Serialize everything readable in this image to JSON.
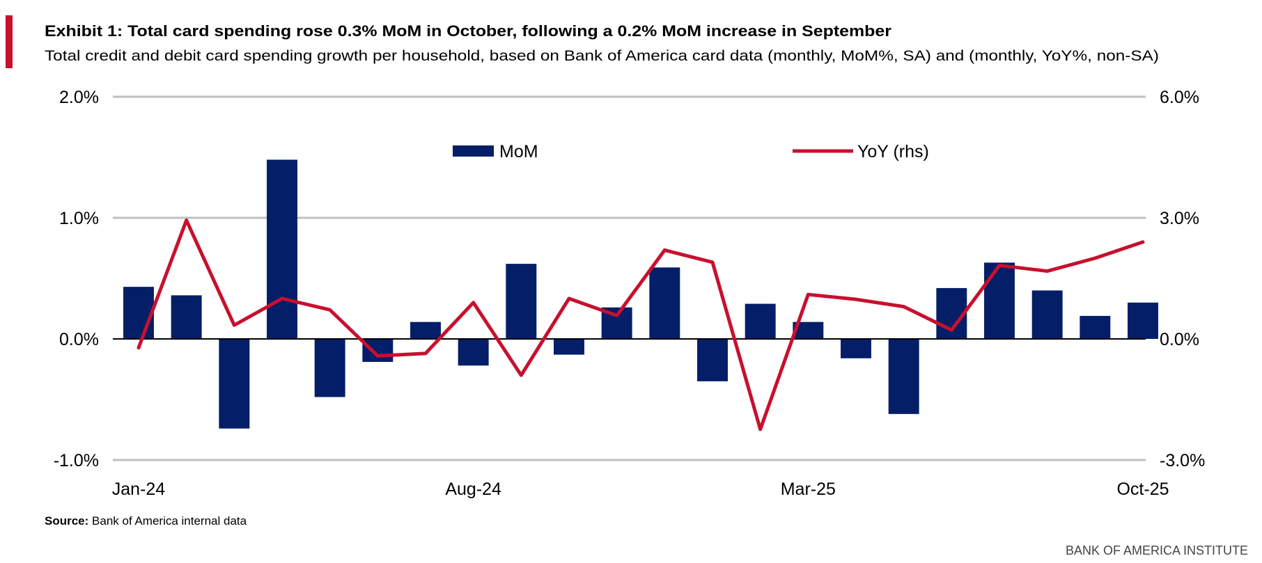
{
  "header": {
    "title": "Exhibit 1: Total card spending rose 0.3% MoM in October, following a 0.2% MoM increase in September",
    "subtitle": "Total credit and debit card spending growth per household, based on Bank of America card data (monthly, MoM%, SA) and (monthly, YoY%, non-SA)"
  },
  "footer": {
    "source_label": "Source:",
    "source_text": " Bank of America internal data",
    "brand": "BANK OF AMERICA INSTITUTE"
  },
  "colors": {
    "accent": "#C8102E",
    "bar": "#041E68",
    "line": "#C8102E",
    "grid": "#BFBFBF"
  },
  "chart_data": {
    "type": "bar+line",
    "title": "Exhibit 1: Total card spending rose 0.3% MoM in October, following a 0.2% MoM increase in September",
    "categories": [
      "Jan-24",
      "Feb-24",
      "Mar-24",
      "Apr-24",
      "May-24",
      "Jun-24",
      "Jul-24",
      "Aug-24",
      "Sep-24",
      "Oct-24",
      "Nov-24",
      "Dec-24",
      "Jan-25",
      "Feb-25",
      "Mar-25",
      "Apr-25",
      "May-25",
      "Jun-25",
      "Jul-25",
      "Aug-25",
      "Sep-25",
      "Oct-25"
    ],
    "x_tick_labels": [
      "Jan-24",
      "Aug-24",
      "Mar-25",
      "Oct-25"
    ],
    "series": [
      {
        "name": "MoM",
        "type": "bar",
        "axis": "left",
        "values": [
          0.43,
          0.36,
          -0.74,
          1.48,
          -0.48,
          -0.19,
          0.14,
          -0.22,
          0.62,
          -0.13,
          0.26,
          0.59,
          -0.35,
          0.29,
          0.14,
          -0.16,
          -0.62,
          0.42,
          0.63,
          0.4,
          0.19,
          0.3
        ]
      },
      {
        "name": "YoY (rhs)",
        "type": "line",
        "axis": "right",
        "values": [
          -0.22,
          2.94,
          0.34,
          1.0,
          0.72,
          -0.42,
          -0.36,
          0.9,
          -0.9,
          1.0,
          0.58,
          2.2,
          1.9,
          -2.24,
          1.1,
          0.98,
          0.8,
          0.22,
          1.82,
          1.68,
          2.0,
          2.4
        ]
      }
    ],
    "y_left": {
      "ylim": [
        -1.0,
        2.0
      ],
      "ticks": [
        "-1.0%",
        "0.0%",
        "1.0%",
        "2.0%"
      ]
    },
    "y_right": {
      "ylim": [
        -3.0,
        6.0
      ],
      "ticks": [
        "-3.0%",
        "0.0%",
        "3.0%",
        "6.0%"
      ]
    },
    "grid": true,
    "legend_position": "top"
  }
}
